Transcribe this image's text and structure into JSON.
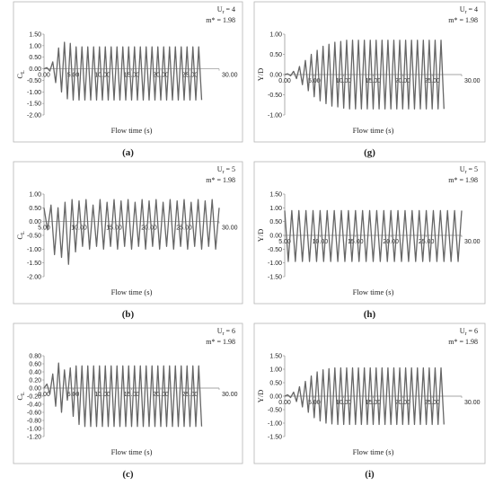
{
  "chart_data": [
    {
      "type": "line",
      "panel": "(a)",
      "y_label": {
        "base": "C",
        "sub": "L"
      },
      "x_label": "Flow time (s)",
      "annotation_ur": {
        "base": "U",
        "sub": "r",
        "text": " = 4"
      },
      "annotation_m": "m* = 1.98",
      "color": "#666666",
      "grid": false,
      "xlim": [
        0,
        30
      ],
      "xticks": [
        {
          "value": 0,
          "label": "0.00"
        },
        {
          "value": 5,
          "label": "5.00"
        },
        {
          "value": 10,
          "label": "10.00"
        },
        {
          "value": 15,
          "label": "15.00"
        },
        {
          "value": 20,
          "label": "20.00"
        },
        {
          "value": 25,
          "label": "25.00"
        },
        {
          "value": 30,
          "label": "30.00"
        }
      ],
      "ylim": [
        -2,
        1.5
      ],
      "yticks": [
        {
          "value": -2,
          "label": "-2.00"
        },
        {
          "value": -1.5,
          "label": "-1.50"
        },
        {
          "value": -1,
          "label": "-1.00"
        },
        {
          "value": -0.5,
          "label": "-0.50"
        },
        {
          "value": 0,
          "label": "0.00"
        },
        {
          "value": 0.5,
          "label": "0.50"
        },
        {
          "value": 1,
          "label": "1.00"
        },
        {
          "value": 1.5,
          "label": "1.50"
        }
      ],
      "x": [
        0,
        0.5,
        1,
        1.5,
        2,
        2.5,
        3,
        3.5,
        4,
        4.5,
        5,
        5.5,
        6,
        6.5,
        7,
        7.5,
        8,
        8.5,
        9,
        9.5,
        10,
        10.5,
        11,
        11.5,
        12,
        12.5,
        13,
        13.5,
        14,
        14.5,
        15,
        15.5,
        16,
        16.5,
        17,
        17.5,
        18,
        18.5,
        19,
        19.5,
        20,
        20.5,
        21,
        21.5,
        22,
        22.5,
        23,
        23.5,
        24,
        24.5,
        25,
        25.5,
        26,
        26.5,
        27
      ],
      "values": [
        0,
        0.05,
        -0.1,
        0.3,
        -0.6,
        0.9,
        -1.0,
        1.15,
        -1.3,
        1.1,
        -1.35,
        0.95,
        -1.35,
        0.95,
        -1.35,
        0.95,
        -1.35,
        0.95,
        -1.35,
        0.95,
        -1.35,
        0.95,
        -1.35,
        0.95,
        -1.35,
        0.95,
        -1.35,
        0.95,
        -1.35,
        0.95,
        -1.35,
        0.95,
        -1.35,
        0.95,
        -1.35,
        0.95,
        -1.35,
        0.95,
        -1.35,
        0.95,
        -1.35,
        0.95,
        -1.35,
        0.95,
        -1.35,
        0.95,
        -1.35,
        0.95,
        -1.35,
        0.95,
        -1.35,
        0.95,
        -1.35,
        0.95,
        -1.35
      ]
    },
    {
      "type": "line",
      "panel": "(g)",
      "y_label": {
        "base": "Y/D",
        "sub": ""
      },
      "x_label": "Flow time (s)",
      "annotation_ur": {
        "base": "U",
        "sub": "r",
        "text": " = 4"
      },
      "annotation_m": "m* = 1.98",
      "color": "#666666",
      "grid": false,
      "xlim": [
        0,
        30
      ],
      "xticks": [
        {
          "value": 0,
          "label": "0.00"
        },
        {
          "value": 5,
          "label": "5.00"
        },
        {
          "value": 10,
          "label": "10.00"
        },
        {
          "value": 15,
          "label": "15.00"
        },
        {
          "value": 20,
          "label": "20.00"
        },
        {
          "value": 25,
          "label": "25.00"
        },
        {
          "value": 30,
          "label": "30.00"
        }
      ],
      "ylim": [
        -1,
        1
      ],
      "yticks": [
        {
          "value": -1,
          "label": "-1.00"
        },
        {
          "value": -0.5,
          "label": "-0.50"
        },
        {
          "value": 0,
          "label": "0.00"
        },
        {
          "value": 0.5,
          "label": "0.50"
        },
        {
          "value": 1,
          "label": "1.00"
        }
      ],
      "x": [
        0,
        0.5,
        1,
        1.5,
        2,
        2.5,
        3,
        3.5,
        4,
        4.5,
        5,
        5.5,
        6,
        6.5,
        7,
        7.5,
        8,
        8.5,
        9,
        9.5,
        10,
        10.5,
        11,
        11.5,
        12,
        12.5,
        13,
        13.5,
        14,
        14.5,
        15,
        15.5,
        16,
        16.5,
        17,
        17.5,
        18,
        18.5,
        19,
        19.5,
        20,
        20.5,
        21,
        21.5,
        22,
        22.5,
        23,
        23.5,
        24,
        24.5,
        25,
        25.5,
        26,
        26.5,
        27
      ],
      "values": [
        0,
        0.02,
        -0.03,
        0.08,
        -0.1,
        0.2,
        -0.25,
        0.35,
        -0.4,
        0.5,
        -0.55,
        0.6,
        -0.65,
        0.7,
        -0.72,
        0.75,
        -0.78,
        0.8,
        -0.8,
        0.82,
        -0.83,
        0.85,
        -0.85,
        0.85,
        -0.85,
        0.85,
        -0.85,
        0.85,
        -0.85,
        0.85,
        -0.85,
        0.85,
        -0.85,
        0.85,
        -0.85,
        0.85,
        -0.85,
        0.85,
        -0.85,
        0.85,
        -0.85,
        0.85,
        -0.85,
        0.85,
        -0.85,
        0.85,
        -0.85,
        0.85,
        -0.85,
        0.85,
        -0.85,
        0.85,
        -0.85,
        0.85,
        -0.85
      ]
    },
    {
      "type": "line",
      "panel": "(b)",
      "y_label": {
        "base": "C",
        "sub": "L"
      },
      "x_label": "Flow time (s)",
      "annotation_ur": {
        "base": "U",
        "sub": "r",
        "text": " = 5"
      },
      "annotation_m": "m* = 1.98",
      "color": "#666666",
      "grid": false,
      "xlim": [
        5,
        30
      ],
      "xticks": [
        {
          "value": 5,
          "label": "5.00"
        },
        {
          "value": 10,
          "label": "10.00"
        },
        {
          "value": 15,
          "label": "15.00"
        },
        {
          "value": 20,
          "label": "20.00"
        },
        {
          "value": 25,
          "label": "25.00"
        },
        {
          "value": 30,
          "label": "30.00"
        }
      ],
      "ylim": [
        -2,
        1
      ],
      "yticks": [
        {
          "value": -2,
          "label": "-2.00"
        },
        {
          "value": -1.5,
          "label": "-1.50"
        },
        {
          "value": -1,
          "label": "-1.00"
        },
        {
          "value": -0.5,
          "label": "-0.50"
        },
        {
          "value": 0,
          "label": "0.00"
        },
        {
          "value": 0.5,
          "label": "0.50"
        },
        {
          "value": 1,
          "label": "1.00"
        }
      ],
      "x": [
        5,
        5.5,
        6,
        6.5,
        7,
        7.5,
        8,
        8.5,
        9,
        9.5,
        10,
        10.5,
        11,
        11.5,
        12,
        12.5,
        13,
        13.5,
        14,
        14.5,
        15,
        15.5,
        16,
        16.5,
        17,
        17.5,
        18,
        18.5,
        19,
        19.5,
        20,
        20.5,
        21,
        21.5,
        22,
        22.5,
        23,
        23.5,
        24,
        24.5,
        25,
        25.5,
        26,
        26.5,
        27,
        27.5,
        28,
        28.5,
        29,
        29.5,
        30
      ],
      "values": [
        0.5,
        -0.3,
        0.6,
        -1.2,
        0.5,
        -1.3,
        0.7,
        -1.55,
        0.8,
        -1.1,
        0.75,
        -0.9,
        0.8,
        -1.0,
        0.6,
        -0.9,
        0.8,
        -1.0,
        0.7,
        -0.9,
        0.8,
        -1.0,
        0.75,
        -0.9,
        0.8,
        -1.0,
        0.7,
        -0.9,
        0.8,
        -1.0,
        0.75,
        -0.9,
        0.8,
        -1.0,
        0.7,
        -0.9,
        0.8,
        -1.0,
        0.75,
        -0.9,
        0.8,
        -1.0,
        0.7,
        -0.9,
        0.8,
        -1.0,
        0.75,
        -0.9,
        0.8,
        -1.0,
        0.5
      ]
    },
    {
      "type": "line",
      "panel": "(h)",
      "y_label": {
        "base": "Y/D",
        "sub": ""
      },
      "x_label": "Flow time (s)",
      "annotation_ur": {
        "base": "U",
        "sub": "r",
        "text": " = 5"
      },
      "annotation_m": "m* = 1.98",
      "color": "#666666",
      "grid": false,
      "xlim": [
        5,
        30
      ],
      "xticks": [
        {
          "value": 5,
          "label": "5.00"
        },
        {
          "value": 10,
          "label": "10.00"
        },
        {
          "value": 15,
          "label": "15.00"
        },
        {
          "value": 20,
          "label": "20.00"
        },
        {
          "value": 25,
          "label": "25.00"
        },
        {
          "value": 30,
          "label": "30.00"
        }
      ],
      "ylim": [
        -1.5,
        1.5
      ],
      "yticks": [
        {
          "value": -1.5,
          "label": "-1.50"
        },
        {
          "value": -1,
          "label": "-1.00"
        },
        {
          "value": -0.5,
          "label": "-0.50"
        },
        {
          "value": 0,
          "label": "0.00"
        },
        {
          "value": 0.5,
          "label": "0.50"
        },
        {
          "value": 1,
          "label": "1.00"
        },
        {
          "value": 1.5,
          "label": "1.50"
        }
      ],
      "x": [
        5,
        5.5,
        6,
        6.5,
        7,
        7.5,
        8,
        8.5,
        9,
        9.5,
        10,
        10.5,
        11,
        11.5,
        12,
        12.5,
        13,
        13.5,
        14,
        14.5,
        15,
        15.5,
        16,
        16.5,
        17,
        17.5,
        18,
        18.5,
        19,
        19.5,
        20,
        20.5,
        21,
        21.5,
        22,
        22.5,
        23,
        23.5,
        24,
        24.5,
        25,
        25.5,
        26,
        26.5,
        27,
        27.5,
        28,
        28.5,
        29,
        29.5,
        30
      ],
      "values": [
        0.9,
        -0.95,
        0.9,
        -0.95,
        0.9,
        -0.95,
        0.9,
        -0.95,
        0.9,
        -0.95,
        0.9,
        -0.95,
        0.9,
        -0.95,
        0.9,
        -0.95,
        0.9,
        -0.95,
        0.9,
        -0.95,
        0.9,
        -0.95,
        0.9,
        -0.95,
        0.9,
        -0.95,
        0.9,
        -0.95,
        0.9,
        -0.95,
        0.9,
        -0.95,
        0.9,
        -0.95,
        0.9,
        -0.95,
        0.9,
        -0.95,
        0.9,
        -0.95,
        0.9,
        -0.95,
        0.9,
        -0.95,
        0.9,
        -0.95,
        0.9,
        -0.95,
        0.9,
        -0.95,
        0.9
      ]
    },
    {
      "type": "line",
      "panel": "(c)",
      "y_label": {
        "base": "C",
        "sub": "L"
      },
      "x_label": "Flow time (s)",
      "annotation_ur": {
        "base": "U",
        "sub": "r",
        "text": " = 6"
      },
      "annotation_m": "m* = 1.98",
      "color": "#666666",
      "grid": false,
      "xlim": [
        0,
        30
      ],
      "xticks": [
        {
          "value": 0,
          "label": "0.00"
        },
        {
          "value": 5,
          "label": "5.00"
        },
        {
          "value": 10,
          "label": "10.00"
        },
        {
          "value": 15,
          "label": "15.00"
        },
        {
          "value": 20,
          "label": "20.00"
        },
        {
          "value": 25,
          "label": "25.00"
        },
        {
          "value": 30,
          "label": "30.00"
        }
      ],
      "ylim": [
        -1.2,
        0.8
      ],
      "yticks": [
        {
          "value": -1.2,
          "label": "-1.20"
        },
        {
          "value": -1,
          "label": "-1.00"
        },
        {
          "value": -0.8,
          "label": "-0.80"
        },
        {
          "value": -0.6,
          "label": "-0.60"
        },
        {
          "value": -0.4,
          "label": "-0.40"
        },
        {
          "value": -0.2,
          "label": "-0.20"
        },
        {
          "value": 0,
          "label": "0.00"
        },
        {
          "value": 0.2,
          "label": "0.20"
        },
        {
          "value": 0.4,
          "label": "0.40"
        },
        {
          "value": 0.6,
          "label": "0.60"
        },
        {
          "value": 0.8,
          "label": "0.80"
        }
      ],
      "x": [
        0,
        0.5,
        1,
        1.5,
        2,
        2.5,
        3,
        3.5,
        4,
        4.5,
        5,
        5.5,
        6,
        6.5,
        7,
        7.5,
        8,
        8.5,
        9,
        9.5,
        10,
        10.5,
        11,
        11.5,
        12,
        12.5,
        13,
        13.5,
        14,
        14.5,
        15,
        15.5,
        16,
        16.5,
        17,
        17.5,
        18,
        18.5,
        19,
        19.5,
        20,
        20.5,
        21,
        21.5,
        22,
        22.5,
        23,
        23.5,
        24,
        24.5,
        25,
        25.5,
        26,
        26.5,
        27
      ],
      "values": [
        0,
        0.1,
        -0.15,
        0.35,
        -0.45,
        0.62,
        -0.6,
        0.45,
        -0.3,
        0.5,
        -0.7,
        0.55,
        -0.9,
        0.55,
        -0.95,
        0.55,
        -0.95,
        0.55,
        -0.95,
        0.55,
        -0.95,
        0.55,
        -0.95,
        0.55,
        -0.95,
        0.55,
        -0.95,
        0.55,
        -0.95,
        0.55,
        -0.95,
        0.55,
        -0.95,
        0.55,
        -0.95,
        0.55,
        -0.95,
        0.55,
        -0.95,
        0.55,
        -0.95,
        0.55,
        -0.95,
        0.55,
        -0.95,
        0.55,
        -0.95,
        0.55,
        -0.95,
        0.55,
        -0.95,
        0.55,
        -0.95,
        0.55,
        -0.95
      ]
    },
    {
      "type": "line",
      "panel": "(i)",
      "y_label": {
        "base": "Y/D",
        "sub": ""
      },
      "x_label": "Flow time (s)",
      "annotation_ur": {
        "base": "U",
        "sub": "r",
        "text": " = 6"
      },
      "annotation_m": "m* = 1.98",
      "color": "#666666",
      "grid": false,
      "xlim": [
        0,
        30
      ],
      "xticks": [
        {
          "value": 0,
          "label": "0.00"
        },
        {
          "value": 5,
          "label": "5.00"
        },
        {
          "value": 10,
          "label": "10.00"
        },
        {
          "value": 15,
          "label": "15.00"
        },
        {
          "value": 20,
          "label": "20.00"
        },
        {
          "value": 25,
          "label": "25.00"
        },
        {
          "value": 30,
          "label": "30.00"
        }
      ],
      "ylim": [
        -1.5,
        1.5
      ],
      "yticks": [
        {
          "value": -1.5,
          "label": "-1.50"
        },
        {
          "value": -1,
          "label": "-1.00"
        },
        {
          "value": -0.5,
          "label": "-0.50"
        },
        {
          "value": 0,
          "label": "0.00"
        },
        {
          "value": 0.5,
          "label": "0.50"
        },
        {
          "value": 1,
          "label": "1.00"
        },
        {
          "value": 1.5,
          "label": "1.50"
        }
      ],
      "x": [
        0,
        0.5,
        1,
        1.5,
        2,
        2.5,
        3,
        3.5,
        4,
        4.5,
        5,
        5.5,
        6,
        6.5,
        7,
        7.5,
        8,
        8.5,
        9,
        9.5,
        10,
        10.5,
        11,
        11.5,
        12,
        12.5,
        13,
        13.5,
        14,
        14.5,
        15,
        15.5,
        16,
        16.5,
        17,
        17.5,
        18,
        18.5,
        19,
        19.5,
        20,
        20.5,
        21,
        21.5,
        22,
        22.5,
        23,
        23.5,
        24,
        24.5,
        25,
        25.5,
        26,
        26.5,
        27
      ],
      "values": [
        0,
        0.05,
        -0.05,
        0.15,
        -0.2,
        0.35,
        -0.4,
        0.55,
        -0.6,
        0.75,
        -0.8,
        0.9,
        -0.92,
        0.98,
        -1.0,
        1.02,
        -1.03,
        1.05,
        -1.05,
        1.05,
        -1.05,
        1.05,
        -1.05,
        1.05,
        -1.05,
        1.05,
        -1.05,
        1.05,
        -1.05,
        1.05,
        -1.05,
        1.05,
        -1.05,
        1.05,
        -1.05,
        1.05,
        -1.05,
        1.05,
        -1.05,
        1.05,
        -1.05,
        1.05,
        -1.05,
        1.05,
        -1.05,
        1.05,
        -1.05,
        1.05,
        -1.05,
        1.05,
        -1.05,
        1.05,
        -1.05,
        1.05,
        -1.05
      ]
    }
  ]
}
